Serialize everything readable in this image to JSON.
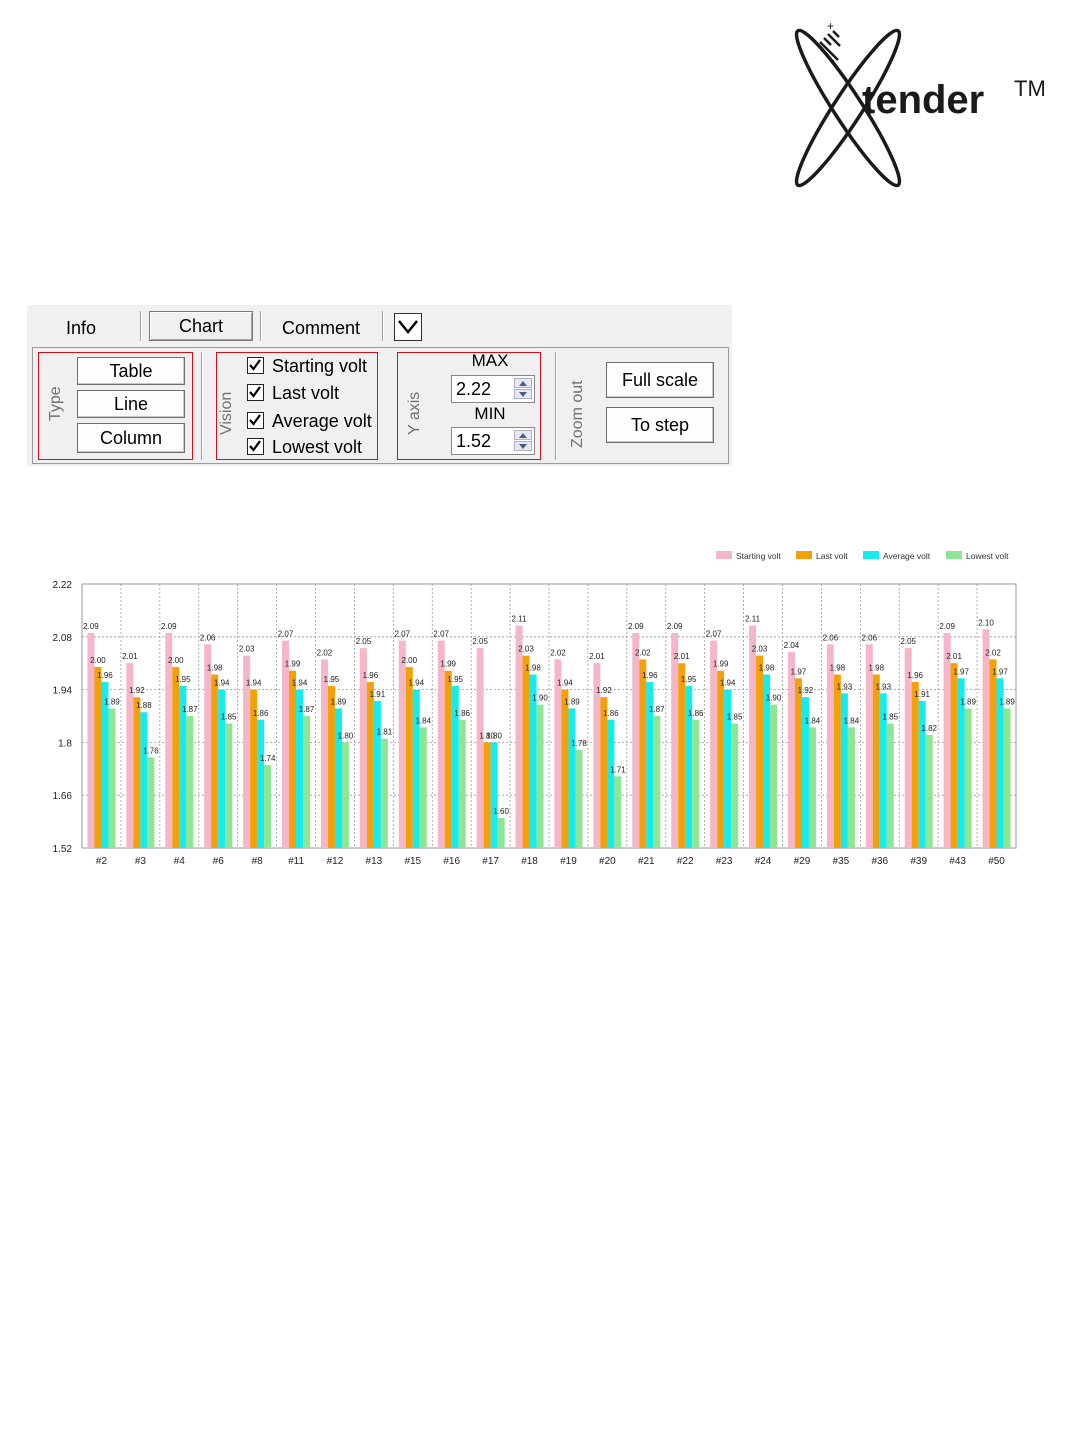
{
  "logo": {
    "text": "tender",
    "tm": "TM"
  },
  "tabs": {
    "info": "Info",
    "chart": "Chart",
    "comment": "Comment"
  },
  "controls": {
    "type_group": {
      "label": "Type",
      "buttons": [
        "Table",
        "Line",
        "Column"
      ]
    },
    "vision_group": {
      "label": "Vision",
      "checkboxes": [
        {
          "label": "Starting volt",
          "checked": true
        },
        {
          "label": "Last volt",
          "checked": true
        },
        {
          "label": "Average volt",
          "checked": true
        },
        {
          "label": "Lowest volt",
          "checked": true
        }
      ]
    },
    "yaxis_group": {
      "label": "Y axis",
      "max_label": "MAX",
      "max_value": "2.22",
      "min_label": "MIN",
      "min_value": "1.52"
    },
    "zoom_group": {
      "label": "Zoom out",
      "full_scale": "Full scale",
      "to_step": "To step"
    }
  },
  "colors": {
    "starting": "#f5b6c8",
    "last": "#f4a009",
    "average": "#14ecee",
    "lowest": "#90e594",
    "highlight": "#d0101a"
  },
  "chart_data": {
    "type": "bar",
    "title": "",
    "xlabel": "",
    "ylabel": "",
    "ylim": [
      1.52,
      2.22
    ],
    "yticks": [
      "1.52",
      "1.66",
      "1.8",
      "1.94",
      "2.08",
      "2.22"
    ],
    "grid": true,
    "legend": "top-right",
    "categories": [
      "#2",
      "#3",
      "#4",
      "#6",
      "#8",
      "#11",
      "#12",
      "#13",
      "#15",
      "#16",
      "#17",
      "#18",
      "#19",
      "#20",
      "#21",
      "#22",
      "#23",
      "#24",
      "#29",
      "#35",
      "#36",
      "#39",
      "#43",
      "#50"
    ],
    "series": [
      {
        "name": "Starting volt",
        "values": [
          2.09,
          2.01,
          2.09,
          2.06,
          2.03,
          2.07,
          2.02,
          2.05,
          2.07,
          2.07,
          2.05,
          2.11,
          2.02,
          2.01,
          2.09,
          2.09,
          2.07,
          2.11,
          2.04,
          2.06,
          2.06,
          2.05,
          2.09,
          2.1
        ]
      },
      {
        "name": "Last volt",
        "values": [
          2.0,
          1.92,
          2.0,
          1.98,
          1.94,
          1.99,
          1.95,
          1.96,
          2.0,
          1.99,
          1.8,
          2.03,
          1.94,
          1.92,
          2.02,
          2.01,
          1.99,
          2.03,
          1.97,
          1.98,
          1.98,
          1.96,
          2.01,
          2.02
        ]
      },
      {
        "name": "Average volt",
        "values": [
          1.96,
          1.88,
          1.95,
          1.94,
          1.86,
          1.94,
          1.89,
          1.91,
          1.94,
          1.95,
          1.8,
          1.98,
          1.89,
          1.86,
          1.96,
          1.95,
          1.94,
          1.98,
          1.92,
          1.93,
          1.93,
          1.91,
          1.97,
          1.97
        ]
      },
      {
        "name": "Lowest volt",
        "values": [
          1.89,
          1.76,
          1.87,
          1.85,
          1.74,
          1.87,
          1.8,
          1.81,
          1.84,
          1.86,
          1.6,
          1.9,
          1.78,
          1.71,
          1.87,
          1.86,
          1.85,
          1.9,
          1.84,
          1.84,
          1.85,
          1.82,
          1.89,
          1.89
        ]
      }
    ]
  }
}
